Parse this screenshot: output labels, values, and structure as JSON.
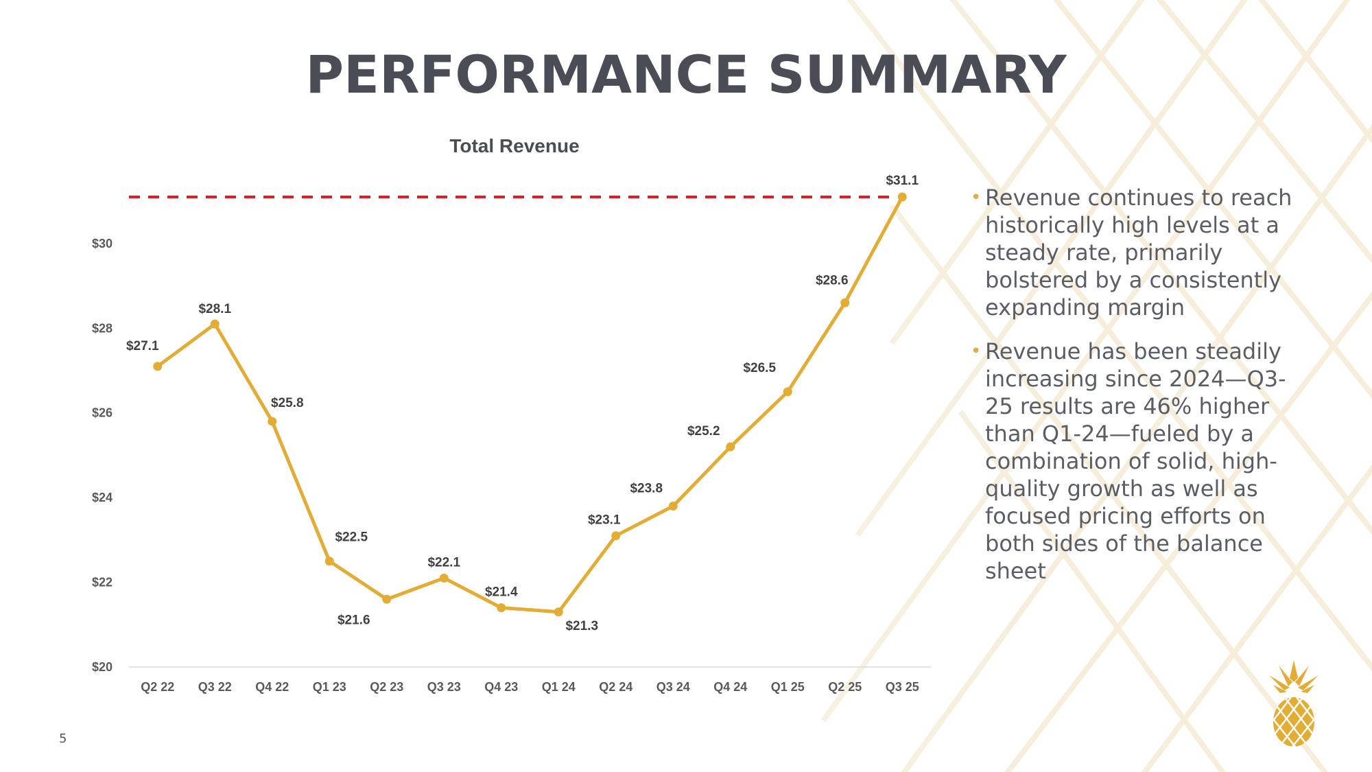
{
  "page": {
    "title": "PERFORMANCE SUMMARY",
    "page_number": "5"
  },
  "bullets": [
    {
      "text": "Revenue continues to reach historically high levels at a steady rate, primarily bolstered by a consistently expanding margin"
    },
    {
      "text": "Revenue has been steadily increasing since 2024—Q3-25 results are 46% higher than Q1-24—fueled by a combination of solid, high-quality growth as well as focused pricing efforts on both sides of the balance sheet"
    }
  ],
  "colors": {
    "line": "#e3ac35",
    "reference_line": "#e31c23",
    "title": "#4a4c56",
    "accent": "#e5ac37"
  },
  "icons": {
    "bullet": "•",
    "logo": "pineapple-icon"
  },
  "chart_data": {
    "type": "line",
    "title": "Total Revenue",
    "xlabel": "",
    "ylabel": "",
    "categories": [
      "Q2 22",
      "Q3 22",
      "Q4 22",
      "Q1 23",
      "Q2 23",
      "Q3 23",
      "Q4 23",
      "Q1 24",
      "Q2 24",
      "Q3 24",
      "Q4 24",
      "Q1 25",
      "Q2 25",
      "Q3 25"
    ],
    "values": [
      27.1,
      28.1,
      25.8,
      22.5,
      21.6,
      22.1,
      21.4,
      21.3,
      23.1,
      23.8,
      25.2,
      26.5,
      28.6,
      31.1
    ],
    "data_labels": [
      "$27.1",
      "$28.1",
      "$25.8",
      "$22.5",
      "$21.6",
      "$22.1",
      "$21.4",
      "$21.3",
      "$23.1",
      "$23.8",
      "$25.2",
      "$26.5",
      "$28.6",
      "$31.1"
    ],
    "label_side": [
      "above",
      "above",
      "above",
      "above",
      "below",
      "above",
      "above",
      "below",
      "above",
      "above",
      "above",
      "above",
      "above",
      "above"
    ],
    "yticks": [
      20,
      22,
      24,
      26,
      28,
      30
    ],
    "ytick_labels": [
      "$20",
      "$22",
      "$24",
      "$26",
      "$28",
      "$30"
    ],
    "ylim": [
      20,
      31.1
    ],
    "reference_line": {
      "value": 31.1,
      "style": "dashed"
    },
    "grid": false,
    "legend": "none"
  }
}
